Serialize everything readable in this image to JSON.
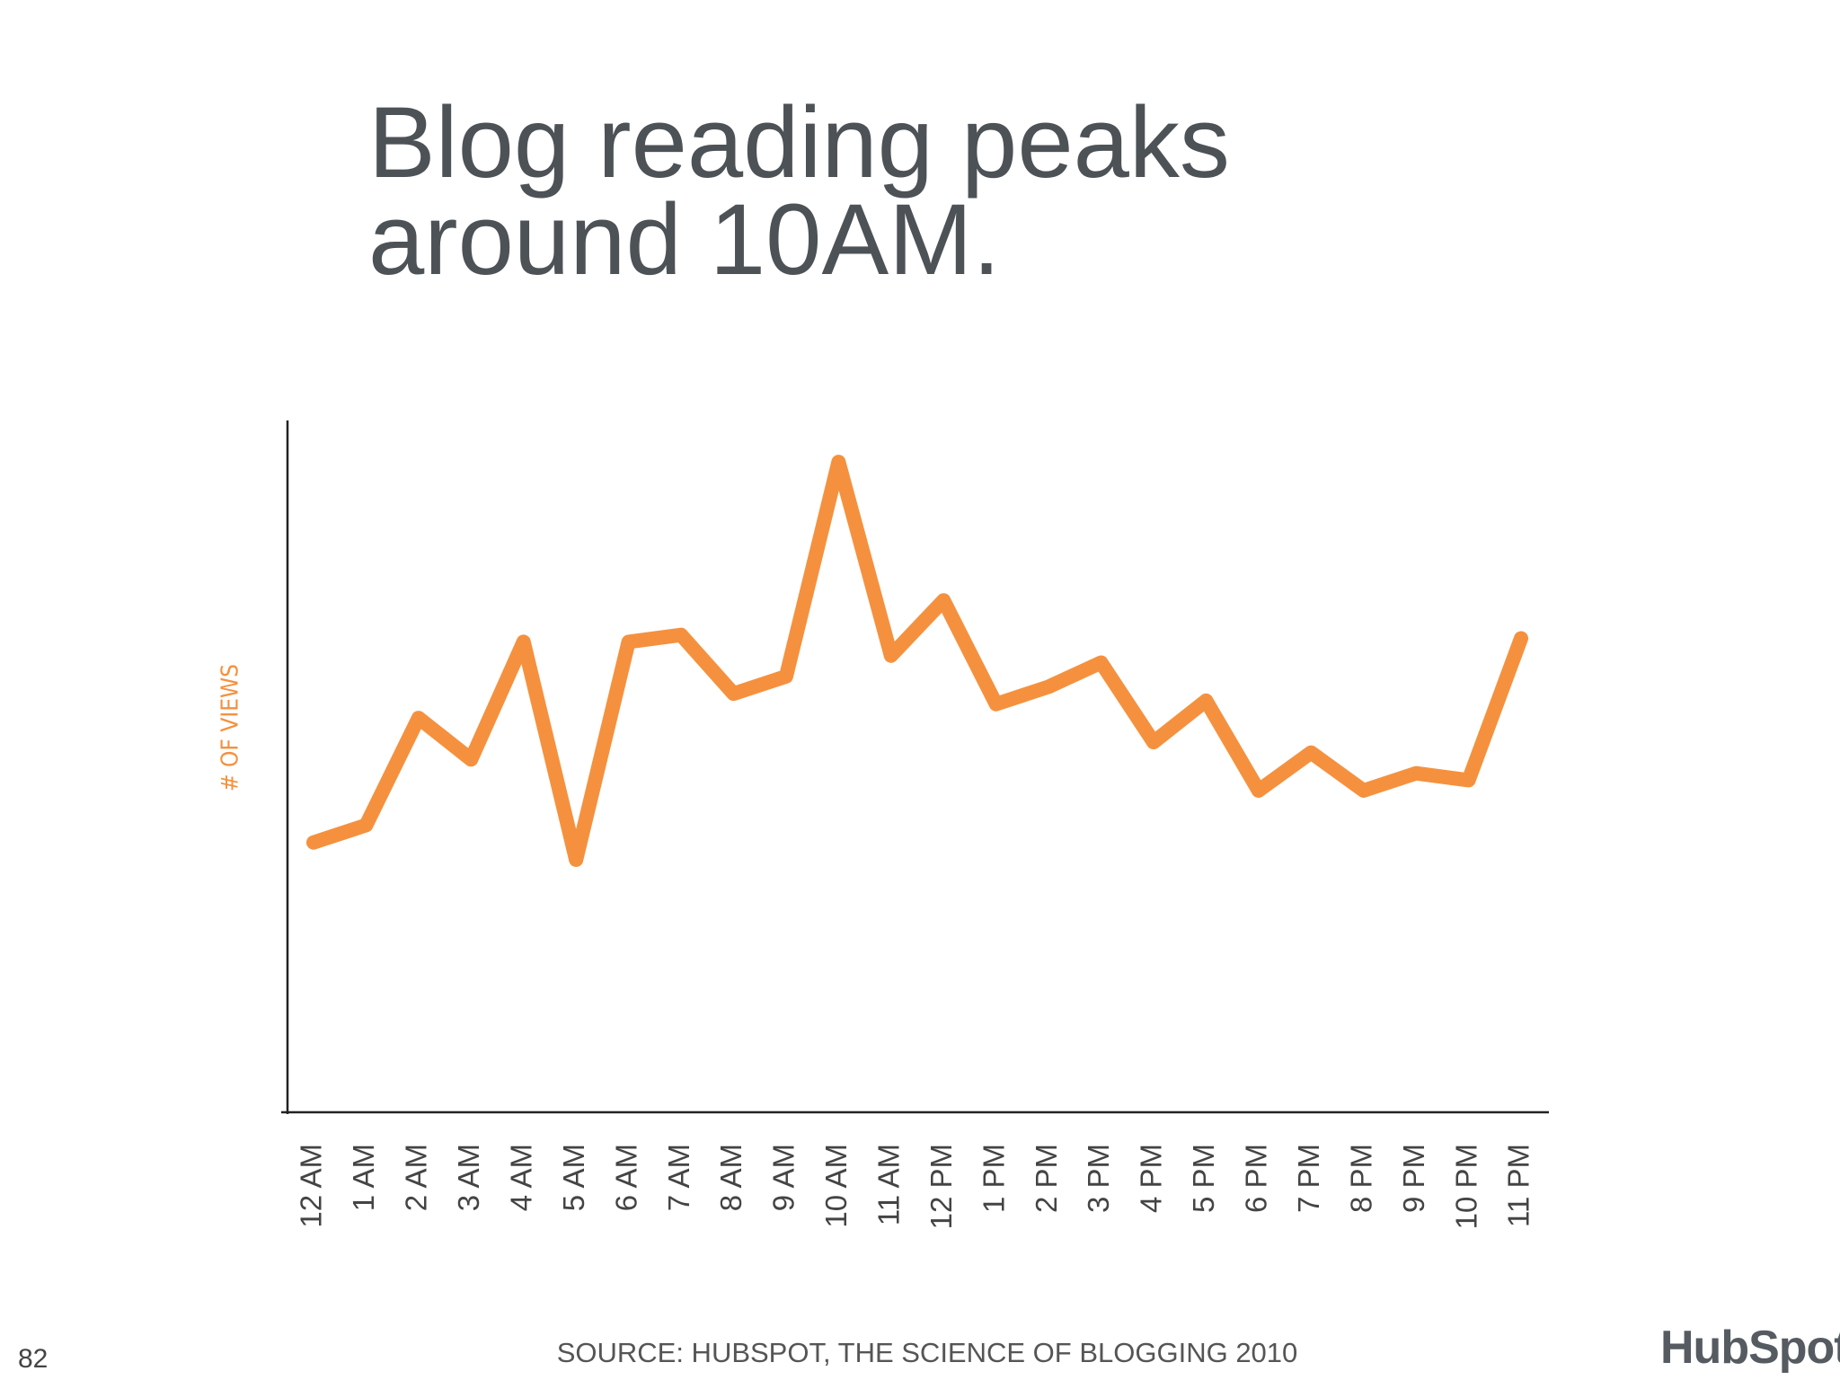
{
  "chart_data": {
    "type": "line",
    "title": "Blog reading peaks around 10AM.",
    "y_label": "# OF VIEWS",
    "categories": [
      "12 AM",
      "1 AM",
      "2 AM",
      "3 AM",
      "4 AM",
      "5 AM",
      "6 AM",
      "7 AM",
      "8 AM",
      "9 AM",
      "10 AM",
      "11 AM",
      "12 PM",
      "1 PM",
      "2 PM",
      "3 PM",
      "4 PM",
      "5 PM",
      "6 PM",
      "7 PM",
      "8 PM",
      "9 PM",
      "10 PM",
      "11 PM"
    ],
    "values": [
      39,
      41.5,
      57,
      51,
      68,
      36.5,
      68,
      69,
      60.5,
      63,
      94,
      66,
      74,
      59,
      61.5,
      65,
      53.5,
      59.5,
      46.5,
      52,
      46.5,
      49,
      48,
      68.5
    ],
    "color": "#f5913e",
    "ylim": [
      0,
      100
    ]
  },
  "slide": {
    "source": "SOURCE: HUBSPOT, THE SCIENCE OF BLOGGING 2010",
    "page_number": "82",
    "logo": "HubSpot"
  }
}
